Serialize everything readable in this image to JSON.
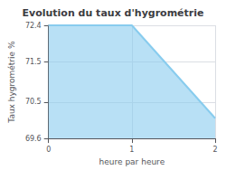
{
  "chart_data": {
    "type": "area",
    "title": "Evolution du taux d'hygrométrie",
    "xlabel": "heure par heure",
    "ylabel": "Taux hygrométrie %",
    "x": [
      0,
      1,
      2
    ],
    "values": [
      72.4,
      72.4,
      70.1
    ],
    "color": "#88ccee",
    "xlim": [
      0,
      2
    ],
    "ylim": [
      69.6,
      72.4
    ],
    "xticks": [
      0,
      1,
      2
    ],
    "yticks": [
      69.6,
      70.5,
      71.5,
      72.4
    ],
    "grid": true
  }
}
